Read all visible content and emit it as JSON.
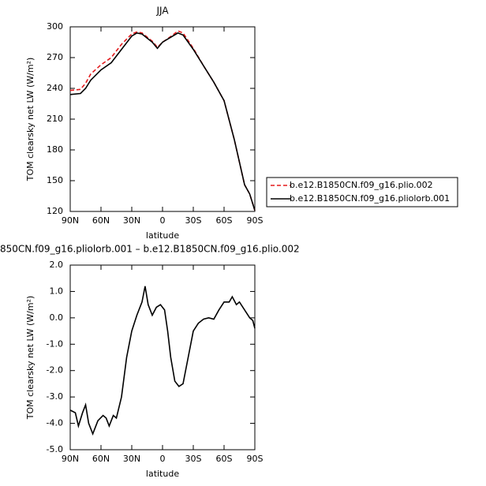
{
  "chart_data": [
    {
      "type": "line",
      "title": "JJA",
      "x_label": "latitude",
      "y_label": "TOM clearsky net LW (W/m²)",
      "xlim": [
        90,
        -90
      ],
      "xticks": [
        {
          "value": 90,
          "label": "90N"
        },
        {
          "value": 60,
          "label": "60N"
        },
        {
          "value": 30,
          "label": "30N"
        },
        0,
        {
          "value": -30,
          "label": "30S"
        },
        {
          "value": -60,
          "label": "60S"
        },
        {
          "value": -90,
          "label": "90S"
        }
      ],
      "ylim": [
        120,
        300
      ],
      "yticks": [
        120,
        150,
        180,
        210,
        240,
        270,
        300
      ],
      "legend": "right",
      "x": [
        90,
        80,
        75,
        70,
        60,
        50,
        40,
        30,
        25,
        20,
        10,
        5,
        0,
        -10,
        -15,
        -20,
        -30,
        -40,
        -50,
        -60,
        -70,
        -75,
        -80,
        -85,
        -90
      ],
      "series": [
        {
          "name": "b.e12.B1850CN.f09_g16.plio.002",
          "color": "#e31a1c",
          "style": "dashed",
          "values": [
            238,
            239,
            245,
            254,
            263,
            270,
            283,
            293,
            295,
            294,
            286,
            280,
            285,
            292,
            296,
            294,
            279,
            262,
            246,
            228,
            190,
            168,
            146,
            137,
            121
          ]
        },
        {
          "name": "b.e12.B1850CN.f09_g16.pliolorb.001",
          "color": "#000000",
          "style": "solid",
          "values": [
            234,
            235,
            240,
            248,
            258,
            265,
            278,
            291,
            294,
            293,
            285,
            279,
            285,
            291,
            294,
            292,
            278,
            262,
            246,
            228,
            190,
            168,
            146,
            137,
            121
          ]
        }
      ]
    },
    {
      "type": "line",
      "title": "850CN.f09_g16.pliolorb.001 – b.e12.B1850CN.f09_g16.plio.002",
      "x_label": "latitude",
      "y_label": "TOM clearsky net LW (W/m²)",
      "xlim": [
        90,
        -90
      ],
      "xticks": [
        {
          "value": 90,
          "label": "90N"
        },
        {
          "value": 60,
          "label": "60N"
        },
        {
          "value": 30,
          "label": "30N"
        },
        0,
        {
          "value": -30,
          "label": "30S"
        },
        {
          "value": -60,
          "label": "60S"
        },
        {
          "value": -90,
          "label": "90S"
        }
      ],
      "ylim": [
        -5,
        2
      ],
      "yticks": [
        {
          "value": -5,
          "label": "-5.0"
        },
        {
          "value": -4,
          "label": "-4.0"
        },
        {
          "value": -3,
          "label": "-3.0"
        },
        {
          "value": -2,
          "label": "-2.0"
        },
        {
          "value": -1,
          "label": "-1.0"
        },
        {
          "value": 0,
          "label": "0.0"
        },
        {
          "value": 1,
          "label": "1.0"
        },
        {
          "value": 2,
          "label": "2.0"
        }
      ],
      "x": [
        90,
        85,
        82,
        78,
        75,
        72,
        68,
        63,
        58,
        55,
        52,
        48,
        45,
        40,
        35,
        30,
        25,
        20,
        17,
        14,
        10,
        6,
        2,
        -2,
        -5,
        -8,
        -12,
        -16,
        -20,
        -25,
        -30,
        -35,
        -40,
        -45,
        -50,
        -55,
        -60,
        -65,
        -68,
        -72,
        -75,
        -80,
        -85,
        -88,
        -90
      ],
      "series": [
        {
          "color": "#000000",
          "style": "solid",
          "values": [
            -3.5,
            -3.6,
            -4.1,
            -3.6,
            -3.3,
            -4.0,
            -4.4,
            -3.9,
            -3.7,
            -3.8,
            -4.1,
            -3.7,
            -3.8,
            -3.0,
            -1.5,
            -0.5,
            0.1,
            0.6,
            1.2,
            0.5,
            0.1,
            0.4,
            0.5,
            0.3,
            -0.5,
            -1.5,
            -2.4,
            -2.6,
            -2.5,
            -1.5,
            -0.5,
            -0.2,
            -0.05,
            0.0,
            -0.05,
            0.3,
            0.6,
            0.6,
            0.8,
            0.5,
            0.6,
            0.3,
            0.0,
            -0.1,
            -0.4
          ]
        }
      ]
    }
  ]
}
